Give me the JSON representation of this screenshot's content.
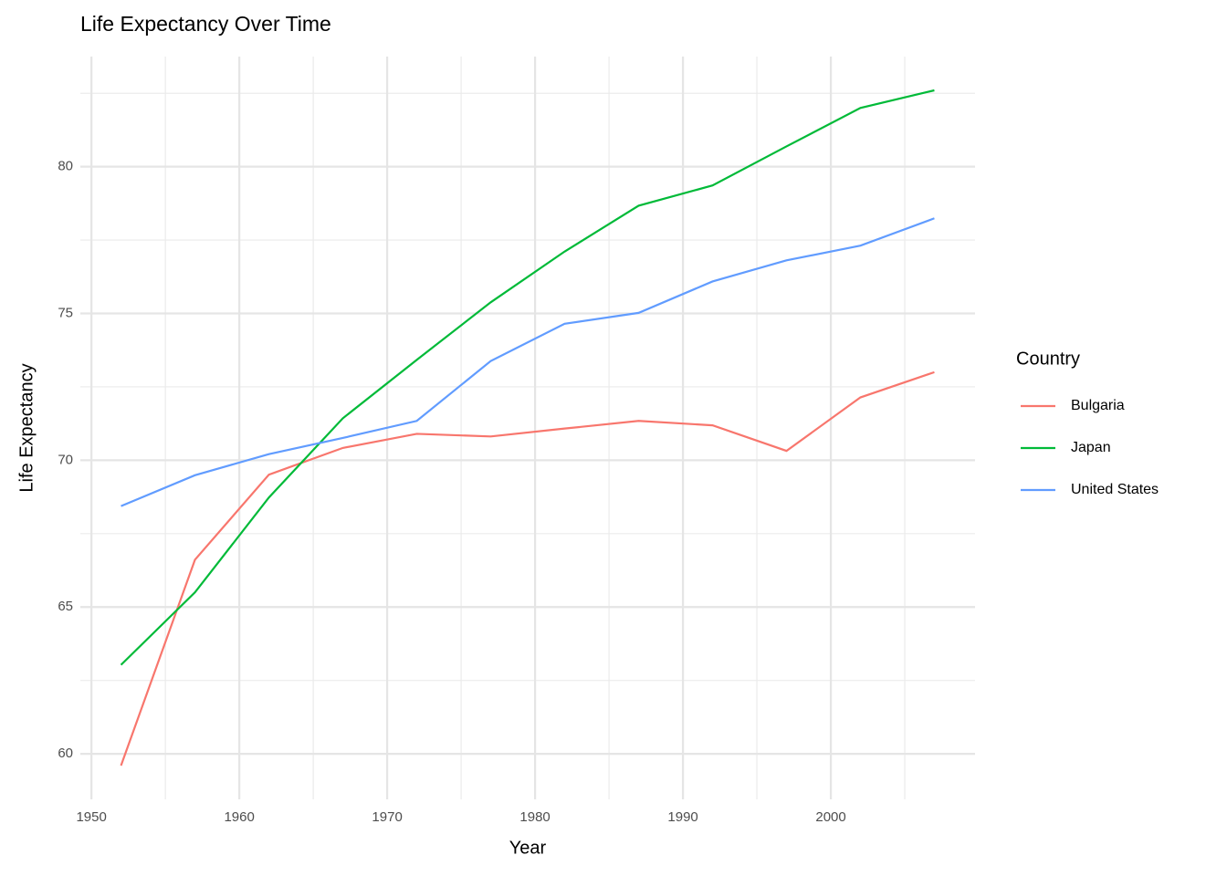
{
  "chart_data": {
    "type": "line",
    "title": "Life Expectancy Over Time",
    "x_label": "Year",
    "y_label": "Life Expectancy",
    "legend_title": "Country",
    "legend_position": "right",
    "grid": true,
    "x": [
      1952,
      1957,
      1962,
      1967,
      1972,
      1977,
      1982,
      1987,
      1992,
      1997,
      2002,
      2007
    ],
    "series": [
      {
        "name": "Bulgaria",
        "color": "#F8766D",
        "values": [
          59.6,
          66.61,
          69.51,
          70.42,
          70.9,
          70.81,
          71.08,
          71.34,
          71.19,
          70.32,
          72.14,
          73.0
        ]
      },
      {
        "name": "Japan",
        "color": "#00BA38",
        "values": [
          63.03,
          65.5,
          68.73,
          71.43,
          73.42,
          75.38,
          77.11,
          78.67,
          79.36,
          80.69,
          82.0,
          82.6
        ]
      },
      {
        "name": "United States",
        "color": "#619CFF",
        "values": [
          68.44,
          69.49,
          70.21,
          70.76,
          71.34,
          73.38,
          74.65,
          75.02,
          76.09,
          76.81,
          77.31,
          78.24
        ]
      }
    ],
    "xlim": [
      1949.25,
      2009.75
    ],
    "xticks": [
      1950,
      1960,
      1970,
      1980,
      1990,
      2000
    ],
    "ylim": [
      58.45,
      83.75
    ],
    "yticks": [
      60,
      65,
      70,
      75,
      80
    ]
  }
}
